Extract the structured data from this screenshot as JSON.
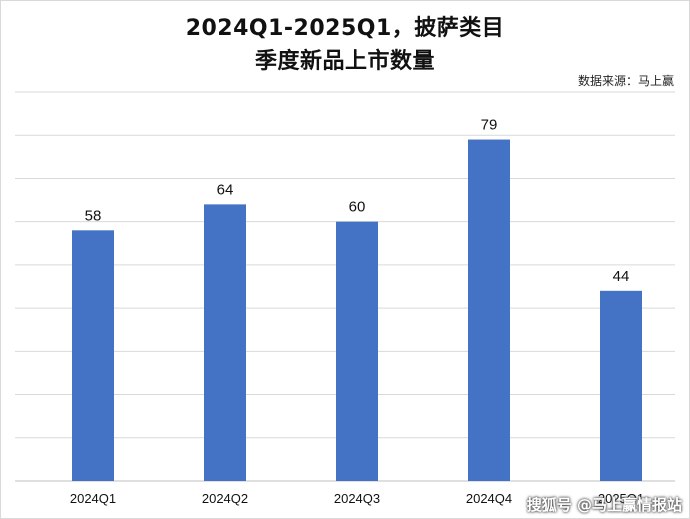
{
  "title_line1": "2024Q1-2025Q1，披萨类目",
  "title_line2": "季度新品上市数量",
  "source": "数据来源：马上赢",
  "watermark": "搜狐号 @马上赢情报站",
  "chart_data": {
    "type": "bar",
    "categories": [
      "2024Q1",
      "2024Q2",
      "2024Q3",
      "2024Q4",
      "2025Q1"
    ],
    "values": [
      58,
      64,
      60,
      79,
      44
    ],
    "ylim": [
      0,
      90
    ],
    "grid": true,
    "bar_color": "#4472c4",
    "gridline_color": "#d9d9d9"
  }
}
